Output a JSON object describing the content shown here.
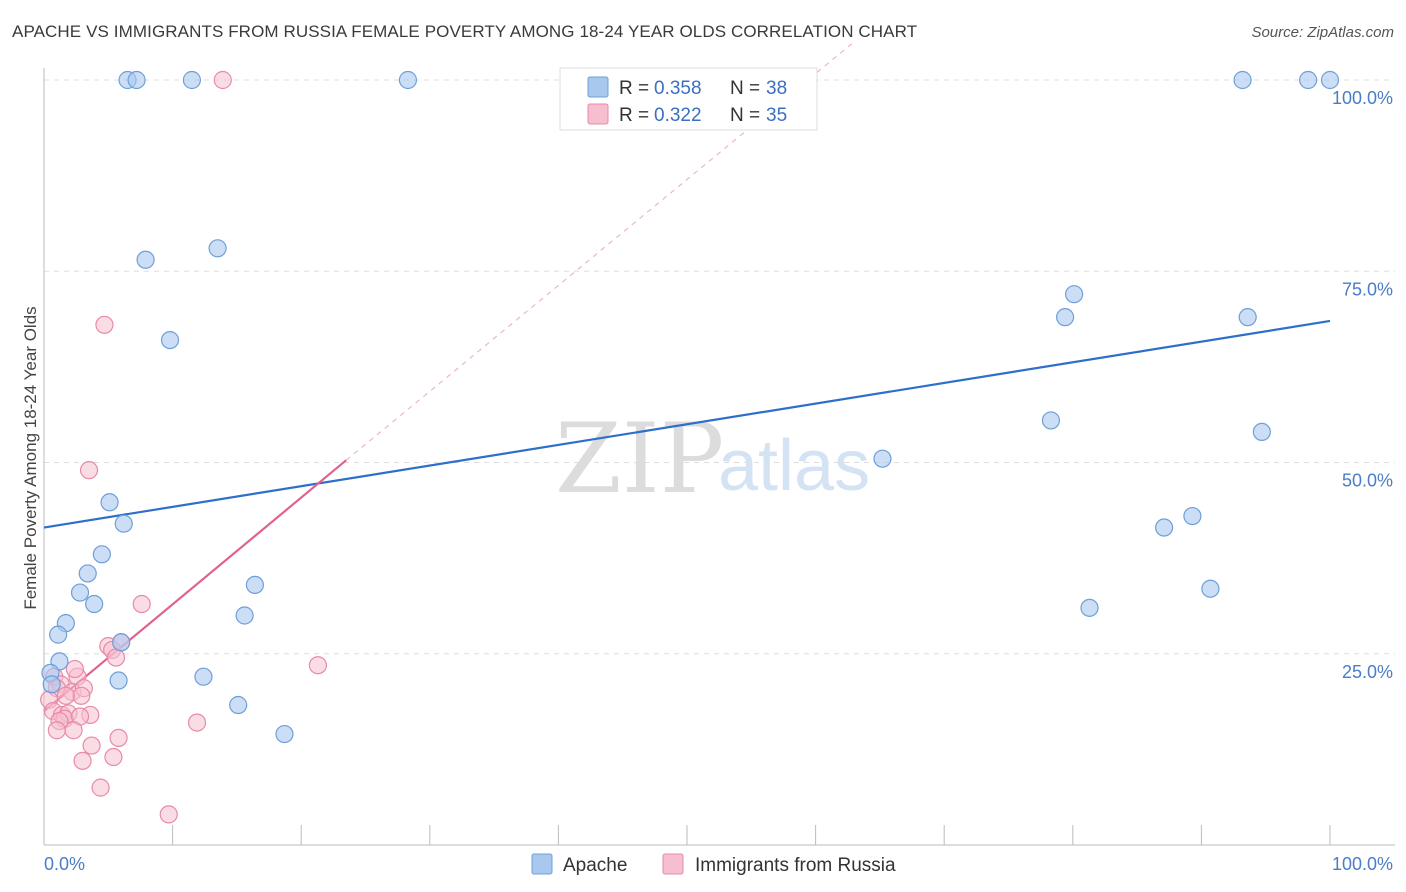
{
  "chart_data": {
    "type": "scatter",
    "title": "APACHE VS IMMIGRANTS FROM RUSSIA FEMALE POVERTY AMONG 18-24 YEAR OLDS CORRELATION CHART",
    "source": "Source: ZipAtlas.com",
    "xlabel": "",
    "ylabel": "Female Poverty Among 18-24 Year Olds",
    "xlim": [
      0,
      100
    ],
    "ylim": [
      0,
      100
    ],
    "x_tick_labels": [
      "0.0%",
      "100.0%"
    ],
    "y_ticks": [
      25,
      50,
      75,
      100
    ],
    "y_tick_labels": [
      "25.0%",
      "50.0%",
      "75.0%",
      "100.0%"
    ],
    "grid": true,
    "watermark": {
      "zip": "ZIP",
      "atlas": "atlas"
    },
    "legend_position": "top-center",
    "colors": {
      "apache_fill": "#a9c8ee",
      "apache_stroke": "#6f9fd8",
      "apache_line": "#2d6fc9",
      "russia_fill": "#f6bfd0",
      "russia_stroke": "#e88aa8",
      "russia_line": "#e0638f",
      "grid": "#dddddd",
      "axis": "#bbbbbb"
    },
    "series": [
      {
        "name": "Apache",
        "R": "0.358",
        "N": "38",
        "trend": {
          "x0": 0,
          "y0": 41.5,
          "x1": 100,
          "y1": 68.5
        },
        "points": [
          [
            6.5,
            100
          ],
          [
            7.2,
            100
          ],
          [
            11.5,
            100
          ],
          [
            28.3,
            100
          ],
          [
            93.2,
            100
          ],
          [
            98.3,
            100
          ],
          [
            100,
            100
          ],
          [
            7.9,
            76.5
          ],
          [
            13.5,
            78
          ],
          [
            9.8,
            66
          ],
          [
            80.1,
            72
          ],
          [
            79.4,
            69
          ],
          [
            93.6,
            69
          ],
          [
            78.3,
            55.5
          ],
          [
            94.7,
            54
          ],
          [
            65.2,
            50.5
          ],
          [
            5.1,
            44.8
          ],
          [
            6.2,
            42
          ],
          [
            87.1,
            41.5
          ],
          [
            89.3,
            43
          ],
          [
            4.5,
            38
          ],
          [
            3.4,
            35.5
          ],
          [
            2.8,
            33
          ],
          [
            3.9,
            31.5
          ],
          [
            16.4,
            34
          ],
          [
            81.3,
            31
          ],
          [
            90.7,
            33.5
          ],
          [
            1.7,
            29
          ],
          [
            1.1,
            27.5
          ],
          [
            15.6,
            30
          ],
          [
            1.2,
            24
          ],
          [
            0.5,
            22.5
          ],
          [
            6.0,
            26.5
          ],
          [
            5.8,
            21.5
          ],
          [
            12.4,
            22
          ],
          [
            15.1,
            18.3
          ],
          [
            18.7,
            14.5
          ],
          [
            0.6,
            21
          ]
        ]
      },
      {
        "name": "Immigrants from Russia",
        "R": "0.322",
        "N": "35",
        "trend": {
          "x0": 0,
          "y0": 17.5,
          "x1": 23.5,
          "y1": 50.3
        },
        "trend_dashed": {
          "x0": 23.5,
          "y0": 50.3,
          "x1": 63,
          "y1": 105
        },
        "points": [
          [
            13.9,
            100
          ],
          [
            4.7,
            68
          ],
          [
            3.5,
            49
          ],
          [
            7.6,
            31.5
          ],
          [
            5.0,
            26
          ],
          [
            5.3,
            25.5
          ],
          [
            6.0,
            26.5
          ],
          [
            5.6,
            24.5
          ],
          [
            21.3,
            23.5
          ],
          [
            2.6,
            22
          ],
          [
            2.4,
            23
          ],
          [
            0.8,
            22
          ],
          [
            1.3,
            21
          ],
          [
            1.0,
            20.5
          ],
          [
            2.2,
            20
          ],
          [
            3.1,
            20.5
          ],
          [
            2.9,
            19.5
          ],
          [
            0.4,
            19
          ],
          [
            1.7,
            19.5
          ],
          [
            0.7,
            17.5
          ],
          [
            1.4,
            17
          ],
          [
            1.9,
            17.2
          ],
          [
            1.6,
            16.5
          ],
          [
            1.2,
            16.2
          ],
          [
            3.6,
            17
          ],
          [
            2.8,
            16.8
          ],
          [
            1.0,
            15
          ],
          [
            2.3,
            15
          ],
          [
            11.9,
            16
          ],
          [
            5.8,
            14
          ],
          [
            3.7,
            13
          ],
          [
            5.4,
            11.5
          ],
          [
            3.0,
            11
          ],
          [
            4.4,
            7.5
          ],
          [
            9.7,
            4
          ]
        ]
      }
    ]
  }
}
